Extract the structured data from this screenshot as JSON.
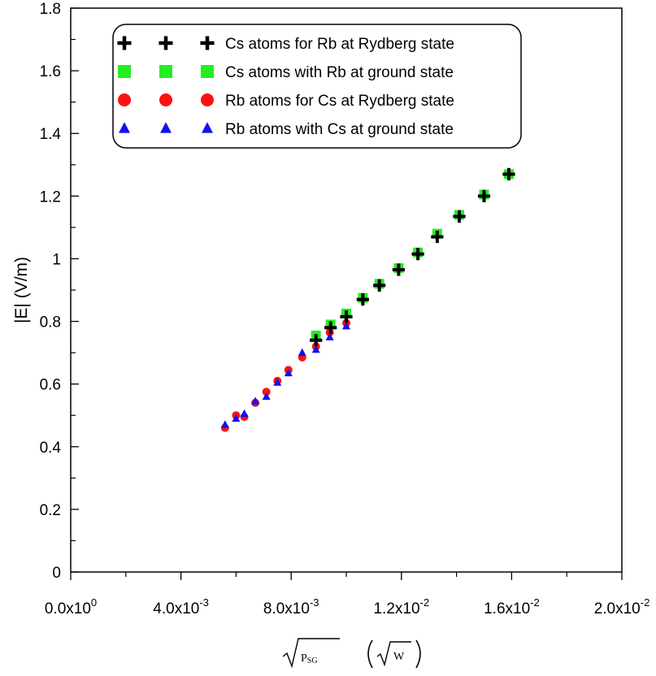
{
  "chart_data": {
    "type": "scatter",
    "title": "",
    "xlabel": "√P_SG   (√W)",
    "xlabel_parts": {
      "quantity": "P",
      "subscript": "SG",
      "unit": "W"
    },
    "ylabel": "|E|  (V/m)",
    "xlim": [
      0,
      0.02
    ],
    "ylim": [
      0,
      1.8
    ],
    "x_ticks": [
      0,
      0.004,
      0.008,
      0.012,
      0.016,
      0.02
    ],
    "x_tick_labels": [
      {
        "mantissa": "0.0x10",
        "exp": "0"
      },
      {
        "mantissa": "4.0x10",
        "exp": "-3"
      },
      {
        "mantissa": "8.0x10",
        "exp": "-3"
      },
      {
        "mantissa": "1.2x10",
        "exp": "-2"
      },
      {
        "mantissa": "1.6x10",
        "exp": "-2"
      },
      {
        "mantissa": "2.0x10",
        "exp": "-2"
      }
    ],
    "y_ticks": [
      0,
      0.2,
      0.4,
      0.6,
      0.8,
      1.0,
      1.2,
      1.4,
      1.6,
      1.8
    ],
    "y_tick_labels": [
      "0",
      "0.2",
      "0.4",
      "0.6",
      "0.8",
      "1",
      "1.2",
      "1.4",
      "1.6",
      "1.8"
    ],
    "legend_position": "top-left",
    "grid": false,
    "series": [
      {
        "name": "Cs atoms for Rb at Rydberg state",
        "marker": "plus",
        "color": "#000000",
        "x": [
          0.0089,
          0.00943,
          0.01,
          0.0106,
          0.0112,
          0.0119,
          0.0126,
          0.0133,
          0.0141,
          0.015,
          0.0159
        ],
        "y": [
          0.74,
          0.78,
          0.815,
          0.87,
          0.915,
          0.965,
          1.015,
          1.07,
          1.135,
          1.2,
          1.27
        ]
      },
      {
        "name": "Cs atoms with Rb at ground state",
        "marker": "square",
        "color": "#22ee22",
        "x": [
          0.0089,
          0.00943,
          0.01,
          0.0106,
          0.0112,
          0.0119,
          0.0126,
          0.0133,
          0.0141,
          0.015,
          0.0159
        ],
        "y": [
          0.755,
          0.79,
          0.825,
          0.875,
          0.92,
          0.97,
          1.02,
          1.08,
          1.14,
          1.205,
          1.27
        ]
      },
      {
        "name": "Rb atoms for Cs at Rydberg state",
        "marker": "circle",
        "color": "#ff1111",
        "x": [
          0.0056,
          0.006,
          0.0063,
          0.0067,
          0.0071,
          0.0075,
          0.0079,
          0.0084,
          0.0089,
          0.0094,
          0.01
        ],
        "y": [
          0.46,
          0.5,
          0.495,
          0.54,
          0.575,
          0.61,
          0.645,
          0.685,
          0.72,
          0.765,
          0.795
        ]
      },
      {
        "name": "Rb atoms with Cs at ground state",
        "marker": "triangle",
        "color": "#1111ee",
        "x": [
          0.0056,
          0.006,
          0.0063,
          0.0067,
          0.0071,
          0.0075,
          0.0079,
          0.0084,
          0.0089,
          0.0094,
          0.01
        ],
        "y": [
          0.47,
          0.49,
          0.505,
          0.545,
          0.56,
          0.605,
          0.635,
          0.7,
          0.71,
          0.75,
          0.785
        ]
      }
    ]
  }
}
